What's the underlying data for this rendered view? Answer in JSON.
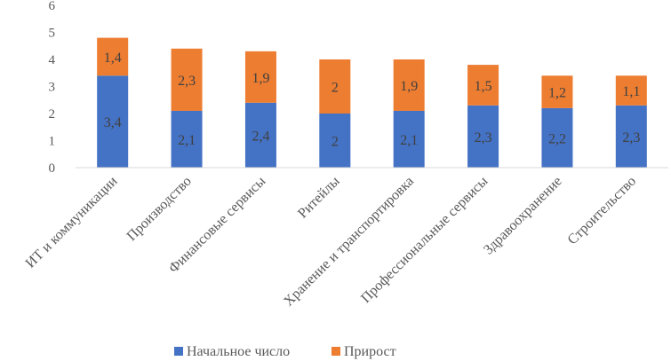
{
  "chart_data": {
    "type": "bar",
    "stacked": true,
    "categories": [
      "ИТ и коммуникации",
      "Производство",
      "Финансовые сервисы",
      "Ритейлы",
      "Хранение и транспортировка",
      "Профессиональные сервисы",
      "Здравоохранение",
      "Строительство"
    ],
    "series": [
      {
        "name": "Начальное число",
        "color": "#4472c4",
        "values": [
          3.4,
          2.1,
          2.4,
          2,
          2.1,
          2.3,
          2.2,
          2.3
        ],
        "labels": [
          "3,4",
          "2,1",
          "2,4",
          "2",
          "2,1",
          "2,3",
          "2,2",
          "2,3"
        ]
      },
      {
        "name": "Прирост",
        "color": "#ed7d31",
        "values": [
          1.4,
          2.3,
          1.9,
          2,
          1.9,
          1.5,
          1.2,
          1.1
        ],
        "labels": [
          "1,4",
          "2,3",
          "1,9",
          "2",
          "1,9",
          "1,5",
          "1,2",
          "1,1"
        ]
      }
    ],
    "ylim": [
      0,
      6
    ],
    "yticks": [
      "0",
      "1",
      "2",
      "3",
      "4",
      "5",
      "6"
    ],
    "grid": false,
    "legend_position": "bottom"
  }
}
